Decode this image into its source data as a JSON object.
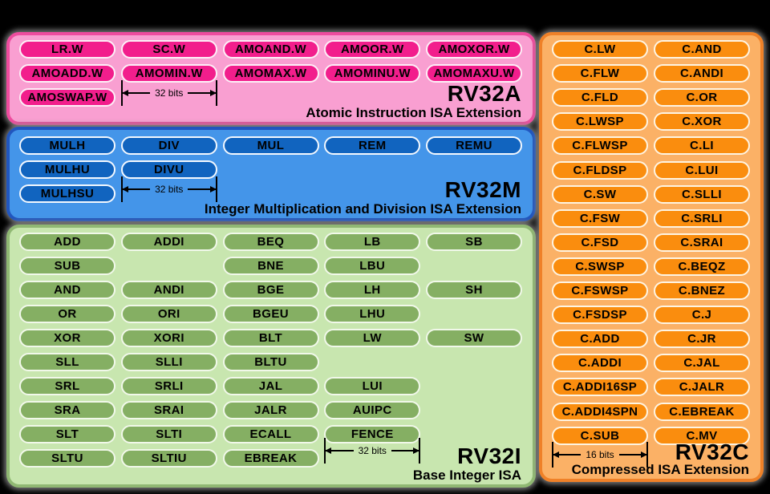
{
  "canvas": {
    "background": "#000000"
  },
  "sections": {
    "rv32a": {
      "title": "RV32A",
      "subtitle": "Atomic Instruction ISA Extension",
      "bits_label": "32 bits",
      "colors": {
        "bg": "#F99FD1",
        "border": "#EE4C9E",
        "pill_bg": "#F21E8C",
        "pill_border": "#FDEFF7",
        "text": "#000000"
      },
      "pills": [
        {
          "label": "LR.W",
          "col": 0,
          "row": 0
        },
        {
          "label": "SC.W",
          "col": 1,
          "row": 0
        },
        {
          "label": "AMOAND.W",
          "col": 2,
          "row": 0
        },
        {
          "label": "AMOOR.W",
          "col": 3,
          "row": 0
        },
        {
          "label": "AMOXOR.W",
          "col": 4,
          "row": 0
        },
        {
          "label": "AMOADD.W",
          "col": 0,
          "row": 1
        },
        {
          "label": "AMOMIN.W",
          "col": 1,
          "row": 1
        },
        {
          "label": "AMOMAX.W",
          "col": 2,
          "row": 1
        },
        {
          "label": "AMOMINU.W",
          "col": 3,
          "row": 1
        },
        {
          "label": "AMOMAXU.W",
          "col": 4,
          "row": 1
        },
        {
          "label": "AMOSWAP.W",
          "col": 0,
          "row": 2
        }
      ]
    },
    "rv32m": {
      "title": "RV32M",
      "subtitle": "Integer Multiplication and Division ISA Extension",
      "bits_label": "32 bits",
      "colors": {
        "bg": "#4495E9",
        "border": "#2156BE",
        "pill_bg": "#1164BF",
        "pill_border": "#F3F8FE",
        "text": "#000000"
      },
      "pills": [
        {
          "label": "MULH",
          "col": 0,
          "row": 0
        },
        {
          "label": "DIV",
          "col": 1,
          "row": 0
        },
        {
          "label": "MUL",
          "col": 2,
          "row": 0
        },
        {
          "label": "REM",
          "col": 3,
          "row": 0
        },
        {
          "label": "REMU",
          "col": 4,
          "row": 0
        },
        {
          "label": "MULHU",
          "col": 0,
          "row": 1
        },
        {
          "label": "DIVU",
          "col": 1,
          "row": 1
        },
        {
          "label": "MULHSU",
          "col": 0,
          "row": 2
        }
      ]
    },
    "rv32i": {
      "title": "RV32I",
      "subtitle": "Base Integer ISA",
      "bits_label": "32 bits",
      "colors": {
        "bg": "#C8E6AF",
        "border": "#90B873",
        "pill_bg": "#85AF63",
        "pill_border": "#F1F8EA",
        "text": "#000000"
      },
      "pills": [
        {
          "label": "ADD",
          "col": 0,
          "row": 0
        },
        {
          "label": "ADDI",
          "col": 1,
          "row": 0
        },
        {
          "label": "BEQ",
          "col": 2,
          "row": 0
        },
        {
          "label": "LB",
          "col": 3,
          "row": 0
        },
        {
          "label": "SB",
          "col": 4,
          "row": 0
        },
        {
          "label": "SUB",
          "col": 0,
          "row": 1
        },
        {
          "label": "BNE",
          "col": 2,
          "row": 1
        },
        {
          "label": "LBU",
          "col": 3,
          "row": 1
        },
        {
          "label": "AND",
          "col": 0,
          "row": 2
        },
        {
          "label": "ANDI",
          "col": 1,
          "row": 2
        },
        {
          "label": "BGE",
          "col": 2,
          "row": 2
        },
        {
          "label": "LH",
          "col": 3,
          "row": 2
        },
        {
          "label": "SH",
          "col": 4,
          "row": 2
        },
        {
          "label": "OR",
          "col": 0,
          "row": 3
        },
        {
          "label": "ORI",
          "col": 1,
          "row": 3
        },
        {
          "label": "BGEU",
          "col": 2,
          "row": 3
        },
        {
          "label": "LHU",
          "col": 3,
          "row": 3
        },
        {
          "label": "XOR",
          "col": 0,
          "row": 4
        },
        {
          "label": "XORI",
          "col": 1,
          "row": 4
        },
        {
          "label": "BLT",
          "col": 2,
          "row": 4
        },
        {
          "label": "LW",
          "col": 3,
          "row": 4
        },
        {
          "label": "SW",
          "col": 4,
          "row": 4
        },
        {
          "label": "SLL",
          "col": 0,
          "row": 5
        },
        {
          "label": "SLLI",
          "col": 1,
          "row": 5
        },
        {
          "label": "BLTU",
          "col": 2,
          "row": 5
        },
        {
          "label": "SRL",
          "col": 0,
          "row": 6
        },
        {
          "label": "SRLI",
          "col": 1,
          "row": 6
        },
        {
          "label": "JAL",
          "col": 2,
          "row": 6
        },
        {
          "label": "LUI",
          "col": 3,
          "row": 6
        },
        {
          "label": "SRA",
          "col": 0,
          "row": 7
        },
        {
          "label": "SRAI",
          "col": 1,
          "row": 7
        },
        {
          "label": "JALR",
          "col": 2,
          "row": 7
        },
        {
          "label": "AUIPC",
          "col": 3,
          "row": 7
        },
        {
          "label": "SLT",
          "col": 0,
          "row": 8
        },
        {
          "label": "SLTI",
          "col": 1,
          "row": 8
        },
        {
          "label": "ECALL",
          "col": 2,
          "row": 8
        },
        {
          "label": "FENCE",
          "col": 3,
          "row": 8
        },
        {
          "label": "SLTU",
          "col": 0,
          "row": 9
        },
        {
          "label": "SLTIU",
          "col": 1,
          "row": 9
        },
        {
          "label": "EBREAK",
          "col": 2,
          "row": 9
        }
      ]
    },
    "rv32c": {
      "title": "RV32C",
      "subtitle": "Compressed ISA Extension",
      "bits_label": "16 bits",
      "colors": {
        "bg": "#FBB166",
        "border": "#EF8128",
        "pill_bg": "#FA8D0E",
        "pill_border": "#FEF4E2",
        "text": "#000000"
      },
      "pills": [
        {
          "label": "C.LW",
          "col": 0,
          "row": 0
        },
        {
          "label": "C.AND",
          "col": 1,
          "row": 0
        },
        {
          "label": "C.FLW",
          "col": 0,
          "row": 1
        },
        {
          "label": "C.ANDI",
          "col": 1,
          "row": 1
        },
        {
          "label": "C.FLD",
          "col": 0,
          "row": 2
        },
        {
          "label": "C.OR",
          "col": 1,
          "row": 2
        },
        {
          "label": "C.LWSP",
          "col": 0,
          "row": 3
        },
        {
          "label": "C.XOR",
          "col": 1,
          "row": 3
        },
        {
          "label": "C.FLWSP",
          "col": 0,
          "row": 4
        },
        {
          "label": "C.LI",
          "col": 1,
          "row": 4
        },
        {
          "label": "C.FLDSP",
          "col": 0,
          "row": 5
        },
        {
          "label": "C.LUI",
          "col": 1,
          "row": 5
        },
        {
          "label": "C.SW",
          "col": 0,
          "row": 6
        },
        {
          "label": "C.SLLI",
          "col": 1,
          "row": 6
        },
        {
          "label": "C.FSW",
          "col": 0,
          "row": 7
        },
        {
          "label": "C.SRLI",
          "col": 1,
          "row": 7
        },
        {
          "label": "C.FSD",
          "col": 0,
          "row": 8
        },
        {
          "label": "C.SRAI",
          "col": 1,
          "row": 8
        },
        {
          "label": "C.SWSP",
          "col": 0,
          "row": 9
        },
        {
          "label": "C.BEQZ",
          "col": 1,
          "row": 9
        },
        {
          "label": "C.FSWSP",
          "col": 0,
          "row": 10
        },
        {
          "label": "C.BNEZ",
          "col": 1,
          "row": 10
        },
        {
          "label": "C.FSDSP",
          "col": 0,
          "row": 11
        },
        {
          "label": "C.J",
          "col": 1,
          "row": 11
        },
        {
          "label": "C.ADD",
          "col": 0,
          "row": 12
        },
        {
          "label": "C.JR",
          "col": 1,
          "row": 12
        },
        {
          "label": "C.ADDI",
          "col": 0,
          "row": 13
        },
        {
          "label": "C.JAL",
          "col": 1,
          "row": 13
        },
        {
          "label": "C.ADDI16SP",
          "col": 0,
          "row": 14
        },
        {
          "label": "C.JALR",
          "col": 1,
          "row": 14
        },
        {
          "label": "C.ADDI4SPN",
          "col": 0,
          "row": 15
        },
        {
          "label": "C.EBREAK",
          "col": 1,
          "row": 15
        },
        {
          "label": "C.SUB",
          "col": 0,
          "row": 16
        },
        {
          "label": "C.MV",
          "col": 1,
          "row": 16
        }
      ]
    }
  }
}
